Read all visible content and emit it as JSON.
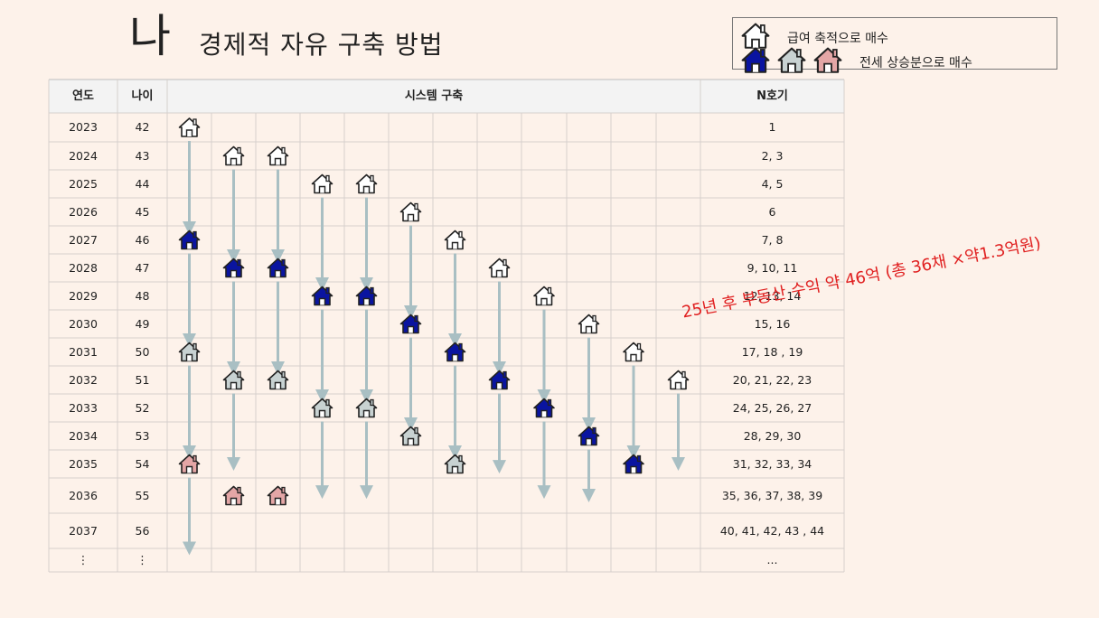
{
  "title_big": "나",
  "title_sub": "경제적 자유 구축 방법",
  "legend": {
    "row1": {
      "label": "급여 축적으로 매수",
      "icons": [
        "house-outline-icon"
      ]
    },
    "row2": {
      "label": "전세 상승분으로 매수",
      "icons": [
        "house-blue-icon",
        "house-gray-icon",
        "house-pink-icon"
      ]
    }
  },
  "table": {
    "headers": {
      "year": "연도",
      "age": "나이",
      "system": "시스템 구축",
      "n": "N호기"
    },
    "rows": [
      {
        "year": "2023",
        "age": "42",
        "n": "1"
      },
      {
        "year": "2024",
        "age": "43",
        "n": "2, 3"
      },
      {
        "year": "2025",
        "age": "44",
        "n": "4, 5"
      },
      {
        "year": "2026",
        "age": "45",
        "n": "6"
      },
      {
        "year": "2027",
        "age": "46",
        "n": "7, 8"
      },
      {
        "year": "2028",
        "age": "47",
        "n": "9, 10, 11"
      },
      {
        "year": "2029",
        "age": "48",
        "n": "12, 13, 14"
      },
      {
        "year": "2030",
        "age": "49",
        "n": "15, 16"
      },
      {
        "year": "2031",
        "age": "50",
        "n": "17, 18 , 19"
      },
      {
        "year": "2032",
        "age": "51",
        "n": "20, 21, 22, 23"
      },
      {
        "year": "2033",
        "age": "52",
        "n": "24, 25, 26, 27"
      },
      {
        "year": "2034",
        "age": "53",
        "n": "28, 29, 30"
      },
      {
        "year": "2035",
        "age": "54",
        "n": "31, 32, 33, 34"
      },
      {
        "year": "2036",
        "age": "55",
        "n": "35, 36, 37, 38, 39"
      },
      {
        "year": "2037",
        "age": "56",
        "n": "40, 41, 42, 43 , 44"
      },
      {
        "year": "⋮",
        "age": "⋮",
        "n": "..."
      }
    ]
  },
  "colors": {
    "outline": "#ffffff",
    "blue": "#0a14a0",
    "gray": "#c8d2d2",
    "pink": "#e4a6a6",
    "arrow": "#a9bfc3",
    "note": "#e02020"
  },
  "houses": [
    {
      "col": 0,
      "row": 0,
      "type": "outline"
    },
    {
      "col": 1,
      "row": 1,
      "type": "outline"
    },
    {
      "col": 2,
      "row": 1,
      "type": "outline"
    },
    {
      "col": 3,
      "row": 2,
      "type": "outline"
    },
    {
      "col": 4,
      "row": 2,
      "type": "outline"
    },
    {
      "col": 5,
      "row": 3,
      "type": "outline"
    },
    {
      "col": 0,
      "row": 4,
      "type": "blue"
    },
    {
      "col": 6,
      "row": 4,
      "type": "outline"
    },
    {
      "col": 1,
      "row": 5,
      "type": "blue"
    },
    {
      "col": 2,
      "row": 5,
      "type": "blue"
    },
    {
      "col": 7,
      "row": 5,
      "type": "outline"
    },
    {
      "col": 3,
      "row": 6,
      "type": "blue"
    },
    {
      "col": 4,
      "row": 6,
      "type": "blue"
    },
    {
      "col": 8,
      "row": 6,
      "type": "outline"
    },
    {
      "col": 5,
      "row": 7,
      "type": "blue"
    },
    {
      "col": 9,
      "row": 7,
      "type": "outline"
    },
    {
      "col": 0,
      "row": 8,
      "type": "gray"
    },
    {
      "col": 6,
      "row": 8,
      "type": "blue"
    },
    {
      "col": 10,
      "row": 8,
      "type": "outline"
    },
    {
      "col": 1,
      "row": 9,
      "type": "gray"
    },
    {
      "col": 2,
      "row": 9,
      "type": "gray"
    },
    {
      "col": 7,
      "row": 9,
      "type": "blue"
    },
    {
      "col": 11,
      "row": 9,
      "type": "outline"
    },
    {
      "col": 3,
      "row": 10,
      "type": "gray"
    },
    {
      "col": 4,
      "row": 10,
      "type": "gray"
    },
    {
      "col": 8,
      "row": 10,
      "type": "blue"
    },
    {
      "col": 5,
      "row": 11,
      "type": "gray"
    },
    {
      "col": 9,
      "row": 11,
      "type": "blue"
    },
    {
      "col": 0,
      "row": 12,
      "type": "pink"
    },
    {
      "col": 6,
      "row": 12,
      "type": "gray"
    },
    {
      "col": 10,
      "row": 12,
      "type": "blue"
    },
    {
      "col": 1,
      "row": 13,
      "type": "pink"
    },
    {
      "col": 2,
      "row": 13,
      "type": "pink"
    }
  ],
  "arrows": [
    {
      "col": 0,
      "from": 0,
      "to": 4
    },
    {
      "col": 0,
      "from": 4,
      "to": 8
    },
    {
      "col": 0,
      "from": 8,
      "to": 12
    },
    {
      "col": 0,
      "from": 12,
      "to": 15
    },
    {
      "col": 1,
      "from": 1,
      "to": 5
    },
    {
      "col": 1,
      "from": 5,
      "to": 9
    },
    {
      "col": 1,
      "from": 9,
      "to": 12.5
    },
    {
      "col": 2,
      "from": 1,
      "to": 5
    },
    {
      "col": 2,
      "from": 5,
      "to": 9
    },
    {
      "col": 3,
      "from": 2,
      "to": 6
    },
    {
      "col": 3,
      "from": 6,
      "to": 10
    },
    {
      "col": 3,
      "from": 10,
      "to": 13.4
    },
    {
      "col": 4,
      "from": 2,
      "to": 6
    },
    {
      "col": 4,
      "from": 6,
      "to": 10
    },
    {
      "col": 4,
      "from": 10,
      "to": 13.4
    },
    {
      "col": 5,
      "from": 3,
      "to": 7
    },
    {
      "col": 5,
      "from": 7,
      "to": 11
    },
    {
      "col": 6,
      "from": 4,
      "to": 8
    },
    {
      "col": 6,
      "from": 8,
      "to": 12
    },
    {
      "col": 7,
      "from": 5,
      "to": 9
    },
    {
      "col": 7,
      "from": 9,
      "to": 12.6
    },
    {
      "col": 8,
      "from": 6,
      "to": 10
    },
    {
      "col": 8,
      "from": 10,
      "to": 13.4
    },
    {
      "col": 9,
      "from": 7,
      "to": 11
    },
    {
      "col": 9,
      "from": 11,
      "to": 13.5
    },
    {
      "col": 10,
      "from": 8,
      "to": 12
    },
    {
      "col": 11,
      "from": 9,
      "to": 12.5
    }
  ],
  "note": "25년  후 부동산 수익 약 46억 (총 36채 ×약1.3억원)"
}
